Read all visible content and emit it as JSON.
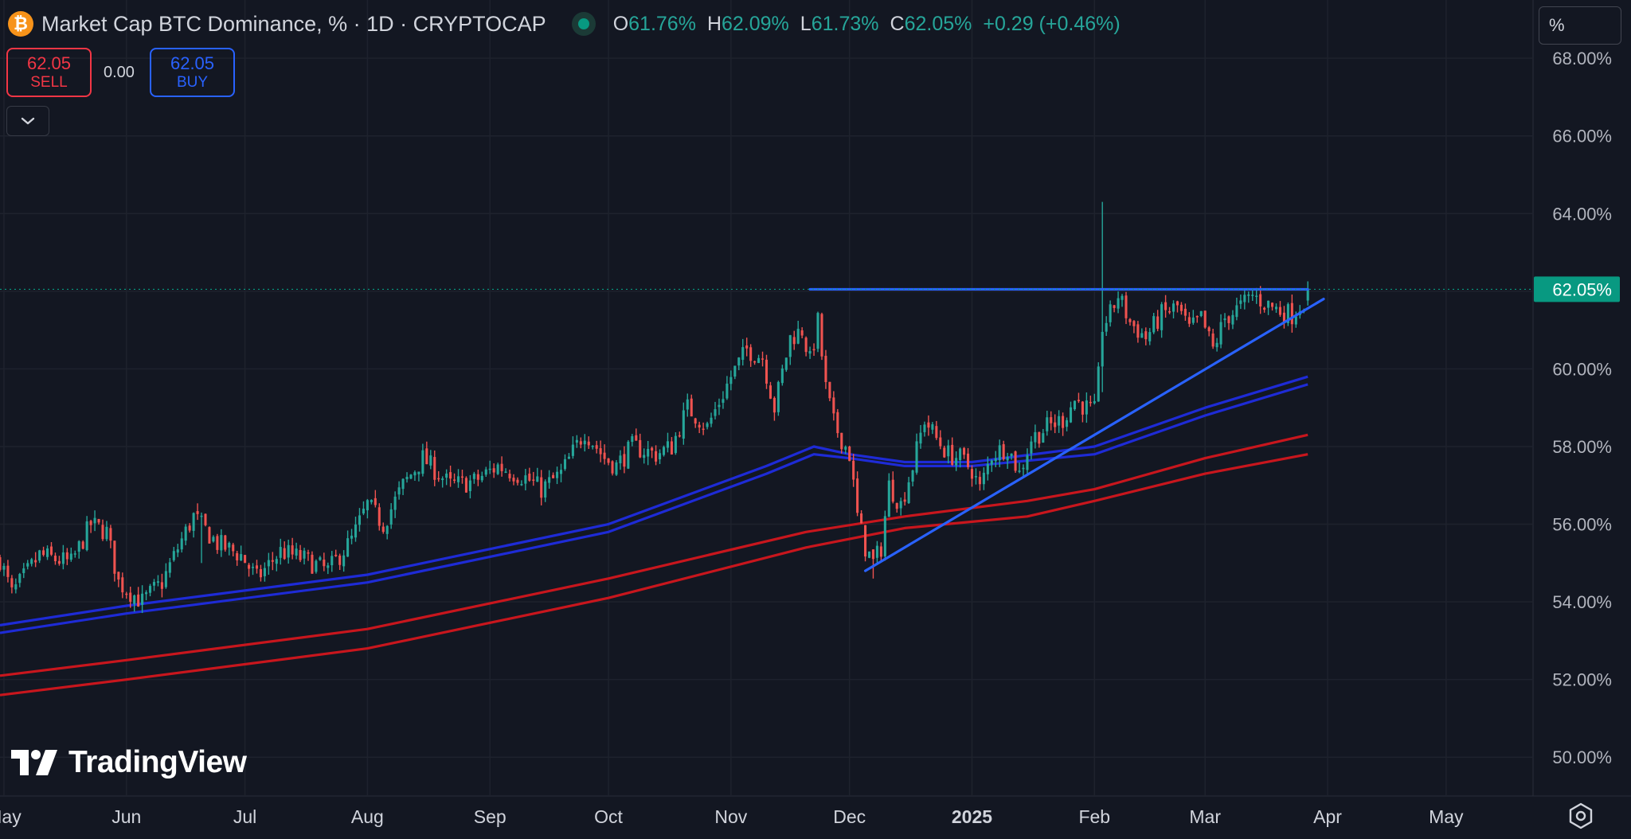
{
  "header": {
    "title": "Market Cap BTC Dominance, % · 1D · CRYPTOCAP",
    "icon": "bitcoin-icon",
    "o_label": "O",
    "o_value": "61.76%",
    "h_label": "H",
    "h_value": "62.09%",
    "l_label": "L",
    "l_value": "61.73%",
    "c_label": "C",
    "c_value": "62.05%",
    "change": "+0.29 (+0.46%)"
  },
  "trade": {
    "sell_price": "62.05",
    "sell_label": "SELL",
    "spread": "0.00",
    "buy_price": "62.05",
    "buy_label": "BUY"
  },
  "scale_mode": "%",
  "logo_text": "TradingView",
  "colors": {
    "background": "#131722",
    "up": "#26a69a",
    "down": "#ef5350",
    "trendline": "#2962ff",
    "ma_blue": "#1e2bd6",
    "ma_red": "#c8161d",
    "last_price_tag": "#089981"
  },
  "chart_data": {
    "type": "candlestick",
    "y_ticks": [
      "68.00%",
      "66.00%",
      "64.00%",
      "62.00%",
      "60.00%",
      "58.00%",
      "56.00%",
      "54.00%",
      "52.00%",
      "50.00%"
    ],
    "ylim": [
      49,
      69.5
    ],
    "x_ticks": [
      {
        "label": "May",
        "date": "2024-05-01",
        "bold": false
      },
      {
        "label": "Jun",
        "date": "2024-06-01",
        "bold": false
      },
      {
        "label": "Jul",
        "date": "2024-07-01",
        "bold": false
      },
      {
        "label": "Aug",
        "date": "2024-08-01",
        "bold": false
      },
      {
        "label": "Sep",
        "date": "2024-09-01",
        "bold": false
      },
      {
        "label": "Oct",
        "date": "2024-10-01",
        "bold": false
      },
      {
        "label": "Nov",
        "date": "2024-11-01",
        "bold": false
      },
      {
        "label": "Dec",
        "date": "2024-12-01",
        "bold": false
      },
      {
        "label": "2025",
        "date": "2025-01-01",
        "bold": true
      },
      {
        "label": "Feb",
        "date": "2025-02-01",
        "bold": false
      },
      {
        "label": "Mar",
        "date": "2025-03-01",
        "bold": false
      },
      {
        "label": "Apr",
        "date": "2025-04-01",
        "bold": false
      },
      {
        "label": "May",
        "date": "2025-05-01",
        "bold": false
      }
    ],
    "xlim": [
      "2024-04-30",
      "2025-05-23"
    ],
    "last_price": 62.05,
    "last_price_label": "62.05%",
    "price_anchors": [
      [
        "2024-04-30",
        55.1
      ],
      [
        "2024-05-03",
        54.2
      ],
      [
        "2024-05-10",
        55.2
      ],
      [
        "2024-05-18",
        55.0
      ],
      [
        "2024-05-23",
        56.0
      ],
      [
        "2024-05-27",
        55.8
      ],
      [
        "2024-05-30",
        54.5
      ],
      [
        "2024-06-05",
        54.0
      ],
      [
        "2024-06-10",
        54.5
      ],
      [
        "2024-06-15",
        55.6
      ],
      [
        "2024-06-18",
        56.2
      ],
      [
        "2024-06-24",
        55.5
      ],
      [
        "2024-06-30",
        55.2
      ],
      [
        "2024-07-04",
        54.6
      ],
      [
        "2024-07-10",
        55.3
      ],
      [
        "2024-07-16",
        55.1
      ],
      [
        "2024-07-22",
        54.8
      ],
      [
        "2024-07-28",
        55.6
      ],
      [
        "2024-08-01",
        56.5
      ],
      [
        "2024-08-05",
        56.0
      ],
      [
        "2024-08-10",
        57.0
      ],
      [
        "2024-08-15",
        57.7
      ],
      [
        "2024-08-22",
        57.0
      ],
      [
        "2024-08-28",
        57.1
      ],
      [
        "2024-09-03",
        57.5
      ],
      [
        "2024-09-10",
        57.2
      ],
      [
        "2024-09-14",
        56.9
      ],
      [
        "2024-09-19",
        57.3
      ],
      [
        "2024-09-25",
        58.4
      ],
      [
        "2024-09-30",
        57.7
      ],
      [
        "2024-10-03",
        57.5
      ],
      [
        "2024-10-07",
        58.0
      ],
      [
        "2024-10-13",
        57.8
      ],
      [
        "2024-10-17",
        58.0
      ],
      [
        "2024-10-21",
        59.0
      ],
      [
        "2024-10-26",
        58.5
      ],
      [
        "2024-11-01",
        59.8
      ],
      [
        "2024-11-05",
        60.5
      ],
      [
        "2024-11-09",
        60.3
      ],
      [
        "2024-11-12",
        59.0
      ],
      [
        "2024-11-16",
        60.8
      ],
      [
        "2024-11-19",
        61.0
      ],
      [
        "2024-11-21",
        60.2
      ],
      [
        "2024-11-23",
        61.2
      ],
      [
        "2024-11-25",
        59.5
      ],
      [
        "2024-11-27",
        58.6
      ],
      [
        "2024-12-01",
        57.8
      ],
      [
        "2024-12-03",
        56.2
      ],
      [
        "2024-12-05",
        55.4
      ],
      [
        "2024-12-07",
        55.0
      ],
      [
        "2024-12-09",
        55.4
      ],
      [
        "2024-12-11",
        57.0
      ],
      [
        "2024-12-14",
        56.5
      ],
      [
        "2024-12-17",
        57.5
      ],
      [
        "2024-12-20",
        58.7
      ],
      [
        "2024-12-23",
        58.2
      ],
      [
        "2024-12-26",
        57.8
      ],
      [
        "2024-12-29",
        57.7
      ],
      [
        "2025-01-01",
        57.4
      ],
      [
        "2025-01-03",
        56.9
      ],
      [
        "2025-01-06",
        57.8
      ],
      [
        "2025-01-10",
        58.0
      ],
      [
        "2025-01-13",
        57.3
      ],
      [
        "2025-01-16",
        58.2
      ],
      [
        "2025-01-20",
        58.5
      ],
      [
        "2025-01-24",
        58.7
      ],
      [
        "2025-01-27",
        59.2
      ],
      [
        "2025-01-30",
        59.0
      ],
      [
        "2025-02-01",
        58.9
      ],
      [
        "2025-02-02",
        59.8
      ],
      [
        "2025-02-03",
        61.1
      ],
      [
        "2025-02-05",
        61.4
      ],
      [
        "2025-02-07",
        61.9
      ],
      [
        "2025-02-10",
        61.2
      ],
      [
        "2025-02-14",
        60.8
      ],
      [
        "2025-02-18",
        61.4
      ],
      [
        "2025-02-22",
        61.6
      ],
      [
        "2025-02-25",
        61.0
      ],
      [
        "2025-02-28",
        61.3
      ],
      [
        "2025-03-03",
        60.5
      ],
      [
        "2025-03-06",
        61.3
      ],
      [
        "2025-03-10",
        61.6
      ],
      [
        "2025-03-13",
        61.9
      ],
      [
        "2025-03-16",
        61.7
      ],
      [
        "2025-03-20",
        61.5
      ],
      [
        "2025-03-23",
        61.4
      ],
      [
        "2025-03-26",
        61.76
      ],
      [
        "2025-03-27",
        62.05
      ]
    ],
    "spikes": [
      {
        "date": "2025-02-03",
        "high": 64.3,
        "low": 59.4
      },
      {
        "date": "2024-06-20",
        "high": 56.3,
        "low": 55.0
      },
      {
        "date": "2024-12-07",
        "high": 55.2,
        "low": 54.6
      }
    ],
    "moving_averages": [
      {
        "color": "#1e2bd6",
        "points": [
          [
            "2024-04-30",
            53.4
          ],
          [
            "2024-06-01",
            53.9
          ],
          [
            "2024-08-01",
            54.7
          ],
          [
            "2024-10-01",
            56.0
          ],
          [
            "2024-11-10",
            57.5
          ],
          [
            "2024-11-22",
            58.0
          ],
          [
            "2024-12-01",
            57.8
          ],
          [
            "2024-12-15",
            57.6
          ],
          [
            "2025-01-01",
            57.6
          ],
          [
            "2025-02-01",
            58.0
          ],
          [
            "2025-03-01",
            59.0
          ],
          [
            "2025-03-27",
            59.8
          ]
        ]
      },
      {
        "color": "#1e2bd6",
        "points": [
          [
            "2024-04-30",
            53.2
          ],
          [
            "2024-06-01",
            53.7
          ],
          [
            "2024-08-01",
            54.5
          ],
          [
            "2024-10-01",
            55.8
          ],
          [
            "2024-11-10",
            57.3
          ],
          [
            "2024-11-22",
            57.8
          ],
          [
            "2024-12-01",
            57.7
          ],
          [
            "2024-12-15",
            57.5
          ],
          [
            "2025-01-01",
            57.5
          ],
          [
            "2025-02-01",
            57.8
          ],
          [
            "2025-03-01",
            58.8
          ],
          [
            "2025-03-27",
            59.6
          ]
        ]
      },
      {
        "color": "#c8161d",
        "points": [
          [
            "2024-04-30",
            52.1
          ],
          [
            "2024-06-01",
            52.5
          ],
          [
            "2024-08-01",
            53.3
          ],
          [
            "2024-10-01",
            54.6
          ],
          [
            "2024-11-20",
            55.8
          ],
          [
            "2024-12-15",
            56.2
          ],
          [
            "2025-01-15",
            56.6
          ],
          [
            "2025-02-01",
            56.9
          ],
          [
            "2025-03-01",
            57.7
          ],
          [
            "2025-03-27",
            58.3
          ]
        ]
      },
      {
        "color": "#c8161d",
        "points": [
          [
            "2024-04-30",
            51.6
          ],
          [
            "2024-06-01",
            52.0
          ],
          [
            "2024-08-01",
            52.8
          ],
          [
            "2024-10-01",
            54.1
          ],
          [
            "2024-11-20",
            55.4
          ],
          [
            "2024-12-15",
            55.9
          ],
          [
            "2025-01-15",
            56.2
          ],
          [
            "2025-02-01",
            56.6
          ],
          [
            "2025-03-01",
            57.3
          ],
          [
            "2025-03-27",
            57.8
          ]
        ]
      }
    ],
    "trendlines": [
      {
        "name": "resistance",
        "start": [
          "2024-11-21",
          62.05
        ],
        "end": [
          "2025-03-27",
          62.05
        ]
      },
      {
        "name": "support",
        "start": [
          "2024-12-05",
          54.8
        ],
        "end": [
          "2025-03-31",
          61.8
        ]
      }
    ]
  }
}
